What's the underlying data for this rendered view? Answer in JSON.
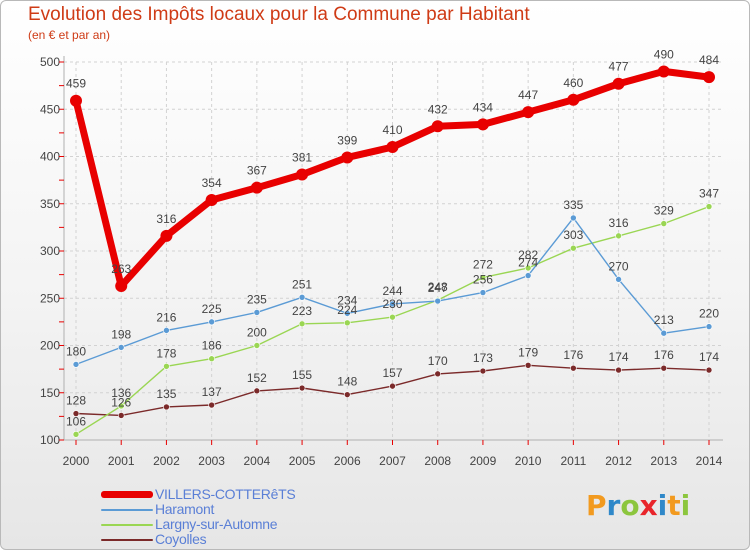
{
  "title": "Evolution des Impôts locaux pour la Commune par Habitant",
  "subtitle": "(en € et par an)",
  "logo": {
    "text": "Proxiti",
    "colors": [
      "#f29a1f",
      "#2f88c9",
      "#8cc63e",
      "#e8252b",
      "#2f88c9",
      "#f29a1f",
      "#8cc63e"
    ]
  },
  "chart_data": {
    "type": "line",
    "x": [
      "2000",
      "2001",
      "2002",
      "2003",
      "2004",
      "2005",
      "2006",
      "2007",
      "2008",
      "2009",
      "2010",
      "2011",
      "2012",
      "2013",
      "2014"
    ],
    "yticks": [
      "100",
      "150",
      "200",
      "250",
      "300",
      "350",
      "400",
      "450",
      "500"
    ],
    "ylim": [
      100,
      500
    ],
    "grid": true,
    "legend_position": "bottom-left",
    "series": [
      {
        "name": "VILLERS-COTTERêTS",
        "color": "#e80000",
        "values": [
          459,
          263,
          316,
          354,
          367,
          381,
          399,
          410,
          432,
          434,
          447,
          460,
          477,
          490,
          484
        ],
        "labels": [
          "459",
          "263",
          "316",
          "354",
          "367",
          "381",
          "399",
          "410",
          "432",
          "434",
          "447",
          "460",
          "477",
          "490",
          "484"
        ]
      },
      {
        "name": "Haramont",
        "color": "#5b9bd5",
        "values": [
          180,
          198,
          216,
          225,
          235,
          251,
          234,
          244,
          247,
          256,
          274,
          335,
          270,
          213,
          220
        ],
        "labels": [
          "180",
          "198",
          "216",
          "225",
          "235",
          "251",
          "234",
          "244",
          "247",
          "256",
          "274",
          "335",
          "270",
          "213",
          "220"
        ]
      },
      {
        "name": "Largny-sur-Automne",
        "color": "#9ad653",
        "values": [
          106,
          136,
          178,
          186,
          200,
          223,
          224,
          230,
          248,
          272,
          282,
          303,
          316,
          329,
          347
        ],
        "labels": [
          "106",
          "136",
          "178",
          "186",
          "200",
          "223",
          "224",
          "230",
          "248",
          "272",
          "282",
          "303",
          "316",
          "329",
          "347"
        ]
      },
      {
        "name": "Coyolles",
        "color": "#7b2a2a",
        "values": [
          128,
          126,
          135,
          137,
          152,
          155,
          148,
          157,
          170,
          173,
          179,
          176,
          174,
          176,
          174
        ],
        "labels": [
          "128",
          "126",
          "135",
          "137",
          "152",
          "155",
          "148",
          "157",
          "170",
          "173",
          "179",
          "176",
          "174",
          "176",
          "174"
        ]
      }
    ]
  }
}
